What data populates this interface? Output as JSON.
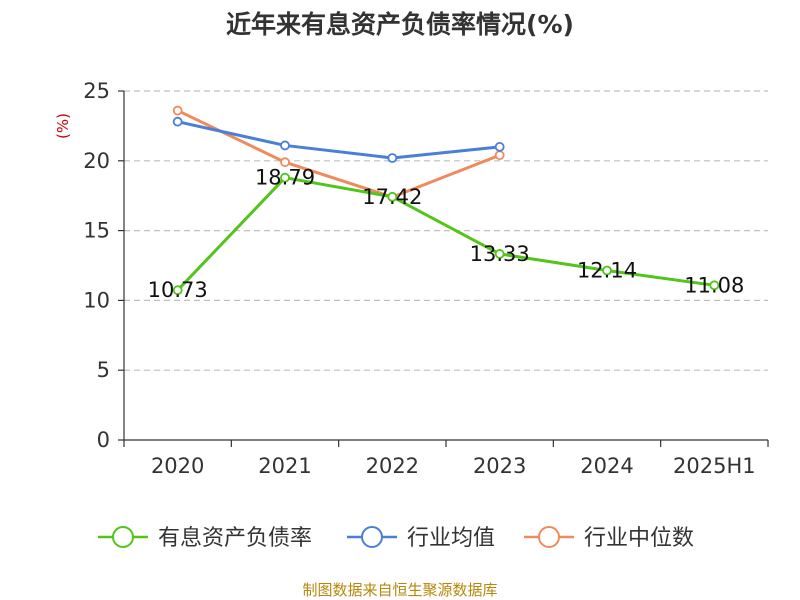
{
  "title": "近年来有息资产负债率情况(%)",
  "source": "制图数据来自恒生聚源数据库",
  "chart_data": {
    "type": "line",
    "title": "近年来有息资产负债率情况(%)",
    "xlabel": "",
    "ylabel": "(%)",
    "categories": [
      "2020",
      "2021",
      "2022",
      "2023",
      "2024",
      "2025H1"
    ],
    "ylim": [
      0,
      25
    ],
    "yticks": [
      0,
      5,
      10,
      15,
      20,
      25
    ],
    "grid": true,
    "legend_position": "bottom",
    "series": [
      {
        "name": "有息资产负债率",
        "color": "#52c41a",
        "values": [
          10.73,
          18.79,
          17.42,
          13.33,
          12.14,
          11.08
        ],
        "labels": [
          "10.73",
          "18.79",
          "17.42",
          "13.33",
          "12.14",
          "11.08"
        ]
      },
      {
        "name": "行业均值",
        "color": "#4a7fd8",
        "values": [
          22.8,
          21.1,
          20.2,
          21.0,
          null,
          null
        ]
      },
      {
        "name": "行业中位数",
        "color": "#f08a5d",
        "values": [
          23.6,
          19.9,
          17.4,
          20.4,
          null,
          null
        ]
      }
    ]
  }
}
